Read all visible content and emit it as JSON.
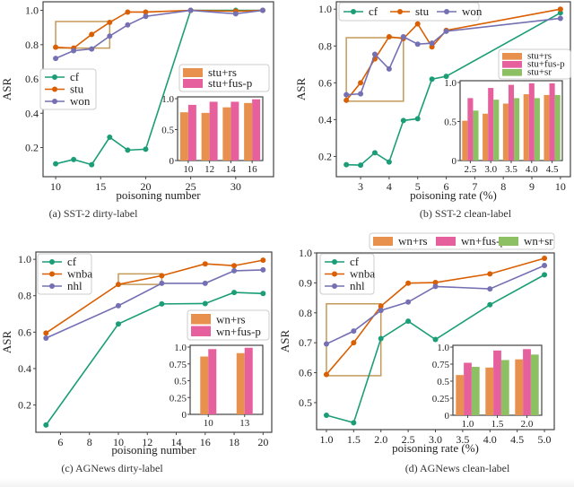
{
  "colors": {
    "green": "#1b9e77",
    "orange": "#d95f02",
    "purple": "#7570b3",
    "bar_orange": "#e8914f",
    "bar_pink": "#e7609e",
    "bar_green": "#8cc063",
    "box": "#c49a5a"
  },
  "chart_data": [
    {
      "id": "a",
      "type": "line",
      "caption": "(a) SST-2 dirty-label",
      "xlabel": "poisoning number",
      "ylabel": "ASR",
      "xlim": [
        8.6,
        34.2
      ],
      "ylim": [
        0.03,
        1.05
      ],
      "xticks": [
        10,
        15,
        20,
        25,
        30
      ],
      "yticks": [
        0.2,
        0.4,
        0.6,
        0.8,
        1.0
      ],
      "legend_position": "center-left",
      "series": [
        {
          "name": "cf",
          "color": "green",
          "x": [
            10,
            12,
            14,
            16,
            18,
            20,
            25,
            30,
            33
          ],
          "y": [
            0.105,
            0.13,
            0.1,
            0.26,
            0.185,
            0.19,
            1.0,
            1.0,
            1.0
          ]
        },
        {
          "name": "stu",
          "color": "orange",
          "x": [
            10,
            12,
            14,
            16,
            18,
            20,
            25,
            30,
            33
          ],
          "y": [
            0.785,
            0.78,
            0.86,
            0.93,
            0.99,
            0.99,
            1.0,
            0.995,
            1.0
          ]
        },
        {
          "name": "won",
          "color": "purple",
          "x": [
            10,
            12,
            14,
            16,
            18,
            20,
            25,
            30,
            33
          ],
          "y": [
            0.72,
            0.765,
            0.775,
            0.85,
            0.915,
            0.965,
            1.0,
            0.98,
            1.0
          ]
        }
      ],
      "zoom_box": {
        "x": [
          10,
          16
        ],
        "y": [
          0.78,
          0.935
        ]
      },
      "inset": {
        "type": "bar",
        "categories": [
          "10",
          "12",
          "14",
          "16"
        ],
        "yticks": [
          "0",
          "0.5",
          "1.0"
        ],
        "ylim": [
          0,
          1.0
        ],
        "legend_position": "above-inset",
        "series": [
          {
            "name": "stu+rs",
            "color": "bar_orange",
            "values": [
              0.78,
              0.77,
              0.86,
              0.93
            ]
          },
          {
            "name": "stu+fus-p",
            "color": "bar_pink",
            "values": [
              0.9,
              0.95,
              0.95,
              0.99
            ]
          }
        ]
      }
    },
    {
      "id": "b",
      "type": "line",
      "caption": "(b) SST-2 clean-label",
      "xlabel": "poisoning rate (%)",
      "ylabel": "ASR",
      "xlim": [
        2.15,
        10.35
      ],
      "ylim": [
        0.09,
        1.04
      ],
      "xticks": [
        3,
        4,
        5,
        6,
        7,
        8,
        9,
        10
      ],
      "yticks": [
        0.2,
        0.4,
        0.6,
        0.8,
        1.0
      ],
      "legend_position": "top (horizontal)",
      "series": [
        {
          "name": "cf",
          "color": "green",
          "x": [
            2.5,
            3,
            3.5,
            4,
            4.5,
            5,
            5.5,
            6,
            10
          ],
          "y": [
            0.155,
            0.153,
            0.22,
            0.17,
            0.395,
            0.405,
            0.62,
            0.635,
            0.98
          ]
        },
        {
          "name": "stu",
          "color": "orange",
          "x": [
            2.5,
            3,
            3.5,
            4,
            4.5,
            5,
            5.5,
            6,
            10
          ],
          "y": [
            0.505,
            0.6,
            0.73,
            0.85,
            0.84,
            0.92,
            0.795,
            0.885,
            1.0
          ]
        },
        {
          "name": "won",
          "color": "purple",
          "x": [
            2.5,
            3,
            3.5,
            4,
            4.5,
            5,
            5.5,
            6,
            10
          ],
          "y": [
            0.535,
            0.54,
            0.755,
            0.675,
            0.85,
            0.81,
            0.815,
            0.88,
            0.95
          ]
        }
      ],
      "zoom_box": {
        "x": [
          2.5,
          4.5
        ],
        "y": [
          0.5,
          0.845
        ]
      },
      "inset": {
        "type": "bar",
        "categories": [
          "2.5",
          "3.0",
          "3.5",
          "4.0",
          "4.5"
        ],
        "yticks": [
          "0",
          "0.5",
          "1.0"
        ],
        "ylim": [
          0,
          1.0
        ],
        "legend_position": "above-inset",
        "series": [
          {
            "name": "stu+rs",
            "color": "bar_orange",
            "values": [
              0.51,
              0.6,
              0.73,
              0.85,
              0.84
            ]
          },
          {
            "name": "stu+fus-p",
            "color": "bar_pink",
            "values": [
              0.8,
              0.93,
              0.97,
              0.99,
              0.99
            ]
          },
          {
            "name": "stu+sr",
            "color": "bar_green",
            "values": [
              0.64,
              0.78,
              0.8,
              0.8,
              0.84
            ]
          }
        ]
      }
    },
    {
      "id": "c",
      "type": "line",
      "caption": "(c) AGNews dirty-label",
      "xlabel": "poisoning number",
      "ylabel": "ASR",
      "xlim": [
        4.3,
        20.6
      ],
      "ylim": [
        0.05,
        1.04
      ],
      "xticks": [
        6,
        8,
        10,
        12,
        14,
        16,
        18,
        20
      ],
      "yticks": [
        0.2,
        0.4,
        0.6,
        0.8,
        1.0
      ],
      "legend_position": "top-left",
      "series": [
        {
          "name": "cf",
          "color": "green",
          "x": [
            5,
            10,
            13,
            16,
            18,
            20
          ],
          "y": [
            0.09,
            0.645,
            0.755,
            0.757,
            0.818,
            0.812
          ]
        },
        {
          "name": "wnba",
          "color": "orange",
          "x": [
            5,
            10,
            13,
            16,
            18,
            20
          ],
          "y": [
            0.595,
            0.862,
            0.91,
            0.975,
            0.965,
            0.995
          ]
        },
        {
          "name": "nhl",
          "color": "purple",
          "x": [
            5,
            10,
            13,
            16,
            18,
            20
          ],
          "y": [
            0.567,
            0.745,
            0.868,
            0.868,
            0.937,
            0.942
          ]
        }
      ],
      "zoom_box": {
        "x": [
          10,
          13
        ],
        "y": [
          0.862,
          0.92
        ]
      },
      "inset": {
        "type": "bar",
        "categories": [
          "10",
          "13"
        ],
        "yticks": [
          "0",
          "0.25",
          "0.5",
          "0.75",
          "1.0"
        ],
        "ylim": [
          0,
          1.0
        ],
        "legend_position": "above-inset",
        "series": [
          {
            "name": "wn+rs",
            "color": "bar_orange",
            "values": [
              0.86,
              0.91
            ]
          },
          {
            "name": "wn+fus-p",
            "color": "bar_pink",
            "values": [
              0.97,
              0.99
            ]
          }
        ]
      }
    },
    {
      "id": "d",
      "type": "line",
      "caption": "(d) AGNews clean-label",
      "xlabel": "poisoning rate (%)",
      "ylabel": "ASR",
      "xlim": [
        0.82,
        5.18
      ],
      "ylim": [
        0.41,
        1.0
      ],
      "xticks": [
        1.0,
        1.5,
        2.0,
        2.5,
        3.0,
        3.5,
        4.0,
        4.5,
        5.0
      ],
      "yticks": [
        0.5,
        0.6,
        0.7,
        0.8,
        0.9,
        1.0
      ],
      "legend_position": "top-left",
      "series": [
        {
          "name": "cf",
          "color": "green",
          "x": [
            1.0,
            1.5,
            2.0,
            2.5,
            3.0,
            4.0,
            5.0
          ],
          "y": [
            0.458,
            0.433,
            0.714,
            0.772,
            0.711,
            0.827,
            0.927
          ]
        },
        {
          "name": "wnba",
          "color": "orange",
          "x": [
            1.0,
            1.5,
            2.0,
            2.5,
            3.0,
            4.0,
            5.0
          ],
          "y": [
            0.594,
            0.7,
            0.822,
            0.899,
            0.901,
            0.93,
            0.982
          ]
        },
        {
          "name": "nhl",
          "color": "purple",
          "x": [
            1.0,
            1.5,
            2.0,
            2.5,
            3.0,
            4.0,
            5.0
          ],
          "y": [
            0.696,
            0.739,
            0.808,
            0.836,
            0.888,
            0.88,
            0.958
          ]
        }
      ],
      "zoom_box": {
        "x": [
          1.0,
          2.0
        ],
        "y": [
          0.59,
          0.83
        ]
      },
      "inset": {
        "type": "bar",
        "categories": [
          "1.0",
          "1.5",
          "2.0"
        ],
        "yticks": [
          "0",
          "0.25",
          "0.5",
          "0.75",
          "1.0"
        ],
        "ylim": [
          0,
          1.0
        ],
        "legend_position": "top (above plot, horizontal)",
        "series": [
          {
            "name": "wn+rs",
            "color": "bar_orange",
            "values": [
              0.59,
              0.7,
              0.82
            ]
          },
          {
            "name": "wn+fus-p",
            "color": "bar_pink",
            "values": [
              0.77,
              0.95,
              0.97
            ]
          },
          {
            "name": "wn+sr",
            "color": "bar_green",
            "values": [
              0.71,
              0.81,
              0.89
            ]
          }
        ]
      }
    }
  ]
}
